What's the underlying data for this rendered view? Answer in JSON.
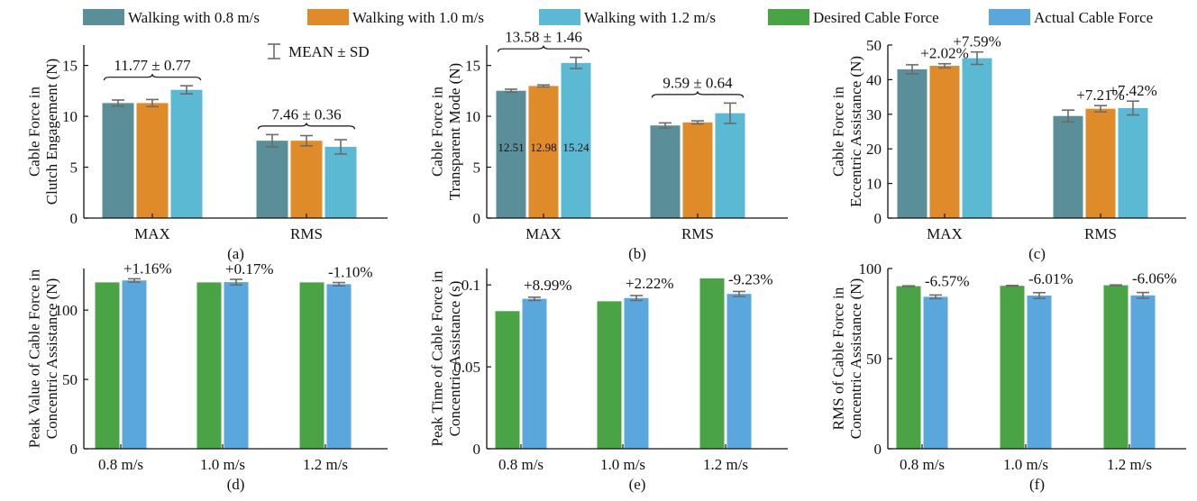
{
  "legend": [
    {
      "label": "Walking with 0.8 m/s",
      "color": "#5a8e99"
    },
    {
      "label": "Walking with 1.0 m/s",
      "color": "#e08b2a"
    },
    {
      "label": "Walking with 1.2 m/s",
      "color": "#5bb9d3"
    },
    {
      "label": "Desired Cable Force",
      "color": "#4aa446"
    },
    {
      "label": "Actual Cable Force",
      "color": "#5aa7de"
    }
  ],
  "error_bar_legend": "MEAN ± SD",
  "chart_data": [
    {
      "type": "bar",
      "panel_label": "(a)",
      "ylabel": [
        "Cable Force in",
        "Clutch Engagement (N)"
      ],
      "ylim": [
        0,
        17
      ],
      "yticks": [
        0,
        5,
        10,
        15
      ],
      "categories": [
        "MAX",
        "RMS"
      ],
      "series": [
        {
          "name": "Walking with 0.8 m/s",
          "values": [
            11.3,
            7.6
          ],
          "errors": [
            0.3,
            0.6
          ],
          "color": "#5a8e99"
        },
        {
          "name": "Walking with 1.0 m/s",
          "values": [
            11.3,
            7.6
          ],
          "errors": [
            0.35,
            0.5
          ],
          "color": "#e08b2a"
        },
        {
          "name": "Walking with 1.2 m/s",
          "values": [
            12.6,
            7.0
          ],
          "errors": [
            0.4,
            0.7
          ],
          "color": "#5bb9d3"
        }
      ],
      "brace_labels": [
        "11.77 ± 0.77",
        "7.46 ± 0.36"
      ]
    },
    {
      "type": "bar",
      "panel_label": "(b)",
      "ylabel": [
        "Cable Force in",
        "Transparent Mode (N)"
      ],
      "ylim": [
        0,
        17
      ],
      "yticks": [
        0,
        5,
        10,
        15
      ],
      "categories": [
        "MAX",
        "RMS"
      ],
      "series": [
        {
          "name": "Walking with 0.8 m/s",
          "values": [
            12.51,
            9.1
          ],
          "errors": [
            0.15,
            0.25
          ],
          "color": "#5a8e99"
        },
        {
          "name": "Walking with 1.0 m/s",
          "values": [
            12.98,
            9.4
          ],
          "errors": [
            0.1,
            0.15
          ],
          "color": "#e08b2a"
        },
        {
          "name": "Walking with 1.2 m/s",
          "values": [
            15.24,
            10.3
          ],
          "errors": [
            0.55,
            1.0
          ],
          "color": "#5bb9d3"
        }
      ],
      "value_labels": [
        "12.51",
        "12.98",
        "15.24"
      ],
      "brace_labels": [
        "13.58 ± 1.46",
        "9.59 ± 0.64"
      ]
    },
    {
      "type": "bar",
      "panel_label": "(c)",
      "ylabel": [
        "Cable Force in",
        "Eccentric Assistance (N)"
      ],
      "ylim": [
        0,
        50
      ],
      "yticks": [
        0,
        10,
        20,
        30,
        40,
        50
      ],
      "categories": [
        "MAX",
        "RMS"
      ],
      "series": [
        {
          "name": "Walking with 0.8 m/s",
          "values": [
            43.0,
            29.5
          ],
          "errors": [
            1.3,
            1.7
          ],
          "color": "#5a8e99"
        },
        {
          "name": "Walking with 1.0 m/s",
          "values": [
            44.0,
            31.6
          ],
          "errors": [
            0.6,
            0.9
          ],
          "color": "#e08b2a"
        },
        {
          "name": "Walking with 1.2 m/s",
          "values": [
            46.2,
            31.8
          ],
          "errors": [
            1.8,
            2.0
          ],
          "color": "#5bb9d3"
        }
      ],
      "percent_labels": [
        "+2.02%",
        "+7.59%",
        "+7.21%",
        "+7.42%"
      ]
    },
    {
      "type": "bar",
      "panel_label": "(d)",
      "ylabel": [
        "Peak Value of Cable Force in",
        "Concentric Assistance (N)"
      ],
      "ylim": [
        0,
        130
      ],
      "yticks": [
        0,
        50,
        100
      ],
      "categories": [
        "0.8 m/s",
        "1.0 m/s",
        "1.2 m/s"
      ],
      "series": [
        {
          "name": "Desired Cable Force",
          "values": [
            120,
            120,
            120
          ],
          "color": "#4aa446"
        },
        {
          "name": "Actual Cable Force",
          "values": [
            121.4,
            120.2,
            118.7
          ],
          "errors": [
            1.2,
            2.0,
            1.2
          ],
          "color": "#5aa7de"
        }
      ],
      "percent_labels": [
        "+1.16%",
        "+0.17%",
        "-1.10%"
      ]
    },
    {
      "type": "bar",
      "panel_label": "(e)",
      "ylabel": [
        "Peak Time of Cable Force in",
        "Concentric Assistance (s)"
      ],
      "ylim": [
        0,
        0.11
      ],
      "yticks": [
        0,
        0.05,
        0.1
      ],
      "ytick_labels": [
        "0",
        "0.05",
        "0.1"
      ],
      "categories": [
        "0.8 m/s",
        "1.0 m/s",
        "1.2 m/s"
      ],
      "series": [
        {
          "name": "Desired Cable Force",
          "values": [
            0.084,
            0.09,
            0.104
          ],
          "color": "#4aa446"
        },
        {
          "name": "Actual Cable Force",
          "values": [
            0.0915,
            0.092,
            0.0945
          ],
          "errors": [
            0.001,
            0.0015,
            0.0015
          ],
          "color": "#5aa7de"
        }
      ],
      "percent_labels": [
        "+8.99%",
        "+2.22%",
        "-9.23%"
      ]
    },
    {
      "type": "bar",
      "panel_label": "(f)",
      "ylabel": [
        "RMS of Cable Force in",
        "Concentric Assistance (N)"
      ],
      "ylim": [
        0,
        100
      ],
      "yticks": [
        0,
        50,
        100
      ],
      "categories": [
        "0.8 m/s",
        "1.0 m/s",
        "1.2 m/s"
      ],
      "series": [
        {
          "name": "Desired Cable Force",
          "values": [
            90.2,
            90.4,
            90.7
          ],
          "errors": [
            0.2,
            0.2,
            0.2
          ],
          "color": "#4aa446"
        },
        {
          "name": "Actual Cable Force",
          "values": [
            84.3,
            85.0,
            85.1
          ],
          "errors": [
            1.0,
            1.6,
            1.6
          ],
          "color": "#5aa7de"
        }
      ],
      "percent_labels": [
        "-6.57%",
        "-6.01%",
        "-6.06%"
      ]
    }
  ]
}
